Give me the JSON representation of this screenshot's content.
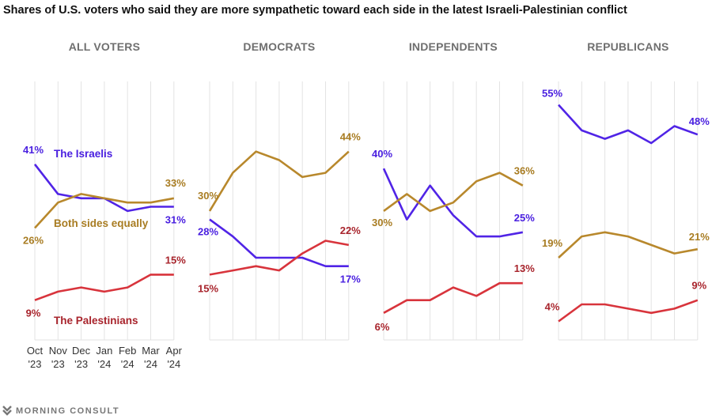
{
  "chart_data": {
    "type": "line",
    "title": "Shares of U.S. voters who said they are more sympathetic toward each side in the latest Israeli-Palestinian conflict",
    "x_months": [
      "Oct",
      "Nov",
      "Dec",
      "Jan",
      "Feb",
      "Mar",
      "Apr"
    ],
    "x_years": [
      "'23",
      "'23",
      "'23",
      "'24",
      "'24",
      "'24",
      "'24"
    ],
    "ylim": [
      0,
      60
    ],
    "grid": "vertical",
    "series_names": [
      "The Israelis",
      "Both sides equally",
      "The Palestinians"
    ],
    "colors": {
      "The Israelis": "#5024e6",
      "Both sides equally": "#b8882c",
      "The Palestinians": "#d8343c"
    },
    "label_colors": {
      "The Israelis": "#4a20e0",
      "Both sides equally": "#a87c22",
      "The Palestinians": "#a8242c"
    },
    "panels": [
      {
        "name": "ALL VOTERS",
        "series": [
          {
            "name": "The Israelis",
            "values": [
              41,
              34,
              33,
              33,
              30,
              31,
              31
            ]
          },
          {
            "name": "Both sides equally",
            "values": [
              26,
              32,
              34,
              33,
              32,
              32,
              33
            ]
          },
          {
            "name": "The Palestinians",
            "values": [
              9,
              11,
              12,
              11,
              12,
              15,
              15
            ]
          }
        ]
      },
      {
        "name": "DEMOCRATS",
        "series": [
          {
            "name": "The Israelis",
            "values": [
              28,
              24,
              19,
              19,
              19,
              17,
              17
            ]
          },
          {
            "name": "Both sides equally",
            "values": [
              30,
              39,
              44,
              42,
              38,
              39,
              44
            ]
          },
          {
            "name": "The Palestinians",
            "values": [
              15,
              16,
              17,
              16,
              20,
              23,
              22
            ]
          }
        ]
      },
      {
        "name": "INDEPENDENTS",
        "series": [
          {
            "name": "The Israelis",
            "values": [
              40,
              28,
              36,
              29,
              24,
              24,
              25
            ]
          },
          {
            "name": "Both sides equally",
            "values": [
              30,
              34,
              30,
              32,
              37,
              39,
              36
            ]
          },
          {
            "name": "The Palestinians",
            "values": [
              6,
              9,
              9,
              12,
              10,
              13,
              13
            ]
          }
        ]
      },
      {
        "name": "REPUBLICANS",
        "series": [
          {
            "name": "The Israelis",
            "values": [
              55,
              49,
              47,
              49,
              46,
              50,
              48
            ]
          },
          {
            "name": "Both sides equally",
            "values": [
              19,
              24,
              25,
              24,
              22,
              20,
              21
            ]
          },
          {
            "name": "The Palestinians",
            "values": [
              4,
              8,
              8,
              7,
              6,
              7,
              9
            ]
          }
        ]
      }
    ]
  },
  "footer": {
    "brand": "MORNING CONSULT"
  }
}
